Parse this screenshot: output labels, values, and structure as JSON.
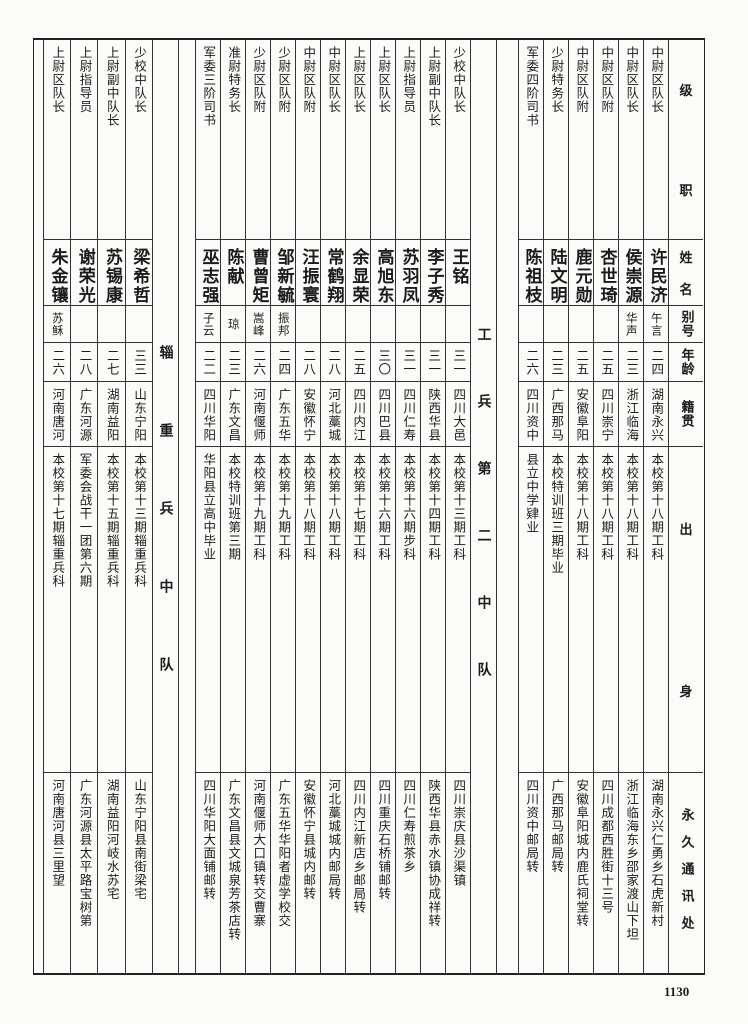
{
  "header": {
    "rank": [
      "级",
      "职"
    ],
    "name": [
      "姓",
      "名"
    ],
    "alias": "别号",
    "age": "年龄",
    "native_place": "籍贯",
    "background": [
      "出",
      "身"
    ],
    "address": "永久通讯处"
  },
  "groups": [
    {
      "label": "",
      "rows": [
        {
          "rank": "中尉区队长",
          "name": "许民济",
          "alias": "午言",
          "age": "二四",
          "native": "湖南永兴",
          "background": "本校第十八期工科",
          "address": "湖南永兴仁勇乡石虎新村"
        },
        {
          "rank": "中尉区队长",
          "name": "侯崇源",
          "alias": "华声",
          "age": "二三",
          "native": "浙江临海",
          "background": "本校第十八期工科",
          "address": "浙江临海东乡邵家渡山下坦"
        },
        {
          "rank": "中尉区队附",
          "name": "杏世琦",
          "alias": "",
          "age": "二五",
          "native": "四川崇宁",
          "background": "本校第十八期工科",
          "address": "四川成都西胜街十三号"
        },
        {
          "rank": "中尉区队附",
          "name": "鹿元勋",
          "alias": "",
          "age": "二五",
          "native": "安徽阜阳",
          "background": "本校第十八期工科",
          "address": "安徽阜阳城内鹿氏祠堂转"
        },
        {
          "rank": "少尉特务长",
          "name": "陆文明",
          "alias": "",
          "age": "二三",
          "native": "广西那马",
          "background": "本校特训班三期毕业",
          "address": "广西那马邮局转"
        },
        {
          "rank": "军委四阶司书",
          "name": "陈祖枝",
          "alias": "",
          "age": "二六",
          "native": "四川资中",
          "background": "县立中学肄业",
          "address": "四川资中邮局转"
        }
      ]
    },
    {
      "label": "工兵第二中队",
      "rows": [
        {
          "rank": "少校中队长",
          "name": "王铭",
          "alias": "",
          "age": "三一",
          "native": "四川大邑",
          "background": "本校第十三期工科",
          "address": "四川崇庆县沙渠镇"
        },
        {
          "rank": "上尉副中队长",
          "name": "李子秀",
          "alias": "",
          "age": "三一",
          "native": "陕西华县",
          "background": "本校第十四期工科",
          "address": "陕西华县赤水镇协成祥转"
        },
        {
          "rank": "上尉指导员",
          "name": "苏羽凤",
          "alias": "",
          "age": "三一",
          "native": "四川仁寿",
          "background": "本校第十六期步科",
          "address": "四川仁寿煎茶乡"
        },
        {
          "rank": "上尉区队长",
          "name": "高旭东",
          "alias": "",
          "age": "三〇",
          "native": "四川巴县",
          "background": "本校第十六期工科",
          "address": "四川重庆石桥铺邮转"
        },
        {
          "rank": "上尉区队长",
          "name": "余显荣",
          "alias": "",
          "age": "二五",
          "native": "四川内江",
          "background": "本校第十七期工科",
          "address": "四川内江新店乡邮局转"
        },
        {
          "rank": "中尉区队长",
          "name": "常鹤翔",
          "alias": "",
          "age": "二八",
          "native": "河北藁城",
          "background": "本校第十八期工科",
          "address": "河北藁城城内邮局转"
        },
        {
          "rank": "中尉区队附",
          "name": "汪振寰",
          "alias": "",
          "age": "二八",
          "native": "安徽怀宁",
          "background": "本校第十八期工科",
          "address": "安徽怀宁县城内邮转"
        },
        {
          "rank": "少尉区队附",
          "name": "邹新毓",
          "alias": "振邦",
          "age": "二四",
          "native": "广东五华",
          "background": "本校第十九期工科",
          "address": "广东五华华阳者虚学校交"
        },
        {
          "rank": "少尉区队附",
          "name": "曹曾矩",
          "alias": "嵩峰",
          "age": "二六",
          "native": "河南偃师",
          "background": "本校第十九期工科",
          "address": "河南偃师大口镇转交曹寨"
        },
        {
          "rank": "准尉特务长",
          "name": "陈献",
          "alias": "琼",
          "age": "二三",
          "native": "广东文昌",
          "background": "本校特训班第三期",
          "address": "广东文昌县文城泉芳茶店转"
        },
        {
          "rank": "军委三阶司书",
          "name": "巫志强",
          "alias": "子云",
          "age": "二二",
          "native": "四川华阳",
          "background": "华阳县立高中毕业",
          "address": "四川华阳大面铺邮转"
        }
      ]
    },
    {
      "label": "辎重兵中队",
      "rows": [
        {
          "rank": "少校中队长",
          "name": "梁希哲",
          "alias": "",
          "age": "三三",
          "native": "山东宁阳",
          "background": "本校第十三期辎重兵科",
          "address": "山东宁阳县南街梁宅"
        },
        {
          "rank": "上尉副中队长",
          "name": "苏锡康",
          "alias": "",
          "age": "二七",
          "native": "湖南益阳",
          "background": "本校第十五期辎重兵科",
          "address": "湖南益阳河岐水苏宅"
        },
        {
          "rank": "上尉指导员",
          "name": "谢荣光",
          "alias": "",
          "age": "二八",
          "native": "广东河源",
          "background": "军委会战干一团第六期",
          "address": "广东河源县太平路宝树第"
        },
        {
          "rank": "上尉区队长",
          "name": "朱金镶",
          "alias": "苏稣",
          "age": "二六",
          "native": "河南唐河",
          "background": "本校第十七期辎重兵科",
          "address": "河南唐河县三里望"
        }
      ]
    }
  ],
  "page_number": "1130"
}
